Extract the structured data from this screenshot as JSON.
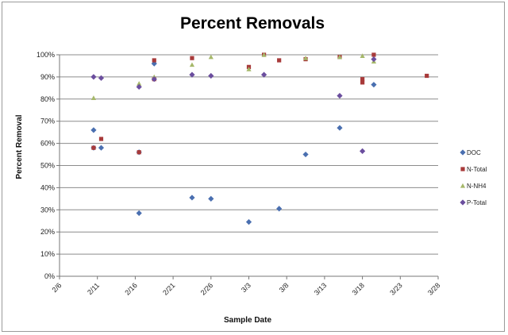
{
  "chart_data": {
    "type": "scatter",
    "title": "Percent Removals",
    "xlabel": "Sample Date",
    "ylabel": "Percent Removal",
    "x_ticks": [
      "2/6",
      "2/11",
      "2/16",
      "2/21",
      "2/26",
      "3/3",
      "3/8",
      "3/13",
      "3/18",
      "3/23",
      "3/28"
    ],
    "y_ticks": [
      "0%",
      "10%",
      "20%",
      "30%",
      "40%",
      "50%",
      "60%",
      "70%",
      "80%",
      "90%",
      "100%"
    ],
    "xlim": [
      0,
      50
    ],
    "ylim": [
      0,
      100
    ],
    "grid": "horizontal",
    "legend": "right",
    "series": [
      {
        "name": "DOC",
        "color": "#4a6fb0",
        "marker": "diamond",
        "points": [
          [
            4.5,
            66
          ],
          [
            4.5,
            58
          ],
          [
            5.5,
            58
          ],
          [
            10.5,
            28.5
          ],
          [
            10.5,
            56
          ],
          [
            12.5,
            96
          ],
          [
            17.5,
            35.5
          ],
          [
            20,
            35
          ],
          [
            25,
            24.5
          ],
          [
            29,
            30.5
          ],
          [
            32.5,
            55
          ],
          [
            37,
            67
          ],
          [
            41.5,
            86.5
          ]
        ]
      },
      {
        "name": "N-Total",
        "color": "#a83a3a",
        "marker": "square",
        "points": [
          [
            4.5,
            58
          ],
          [
            5.5,
            62
          ],
          [
            10.5,
            56
          ],
          [
            12.5,
            89
          ],
          [
            12.5,
            97.5
          ],
          [
            17.5,
            98.5
          ],
          [
            25,
            94.5
          ],
          [
            27,
            100
          ],
          [
            29,
            97.5
          ],
          [
            32.5,
            98
          ],
          [
            37,
            99
          ],
          [
            40,
            89
          ],
          [
            40,
            87.5
          ],
          [
            41.5,
            100
          ],
          [
            48.5,
            90.5
          ]
        ]
      },
      {
        "name": "N-NH4",
        "color": "#a6b86a",
        "marker": "triangle",
        "points": [
          [
            4.5,
            80.5
          ],
          [
            10.5,
            87
          ],
          [
            12.5,
            90
          ],
          [
            17.5,
            95.5
          ],
          [
            20,
            99
          ],
          [
            25,
            93.5
          ],
          [
            27,
            100
          ],
          [
            32.5,
            98.5
          ],
          [
            37,
            99
          ],
          [
            40,
            99.5
          ],
          [
            41.5,
            97
          ]
        ]
      },
      {
        "name": "P-Total",
        "color": "#6b4e9e",
        "marker": "diamond",
        "points": [
          [
            4.5,
            90
          ],
          [
            5.5,
            89.5
          ],
          [
            10.5,
            85.5
          ],
          [
            12.5,
            89
          ],
          [
            17.5,
            91
          ],
          [
            20,
            90.5
          ],
          [
            27,
            91
          ],
          [
            37,
            81.5
          ],
          [
            40,
            56.5
          ],
          [
            41.5,
            98
          ]
        ]
      }
    ]
  }
}
